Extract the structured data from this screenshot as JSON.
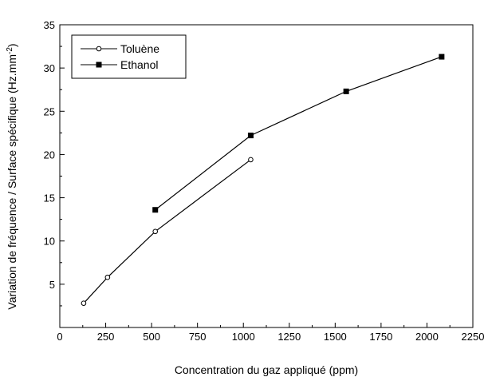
{
  "chart_data": {
    "type": "line",
    "title": "",
    "xlabel": "Concentration du gaz appliqué (ppm)",
    "ylabel": "Variation de fréquence / Surface spécifique (Hz.mm",
    "ylabel_sup": "-2",
    "ylabel_end": ")",
    "xlim": [
      0,
      2250
    ],
    "ylim": [
      0,
      35
    ],
    "x_ticks": [
      0,
      250,
      500,
      750,
      1000,
      1250,
      1500,
      1750,
      2000,
      2250
    ],
    "y_ticks": [
      5,
      10,
      15,
      20,
      25,
      30,
      35
    ],
    "x_tick_labels": [
      "0",
      "250",
      "500",
      "750",
      "1000",
      "1250",
      "1500",
      "1750",
      "2000",
      "2250"
    ],
    "y_tick_labels": [
      "5",
      "10",
      "15",
      "20",
      "25",
      "30",
      "35"
    ],
    "grid": false,
    "legend_position": "top-left",
    "series": [
      {
        "name": "Toluène",
        "marker": "open-circle",
        "color": "#000000",
        "x": [
          130,
          260,
          520,
          1040
        ],
        "y": [
          2.8,
          5.8,
          11.1,
          19.4
        ]
      },
      {
        "name": "Ethanol",
        "marker": "filled-square",
        "color": "#000000",
        "x": [
          520,
          1040,
          1560,
          2080
        ],
        "y": [
          13.6,
          22.2,
          27.3,
          31.3
        ]
      }
    ]
  }
}
